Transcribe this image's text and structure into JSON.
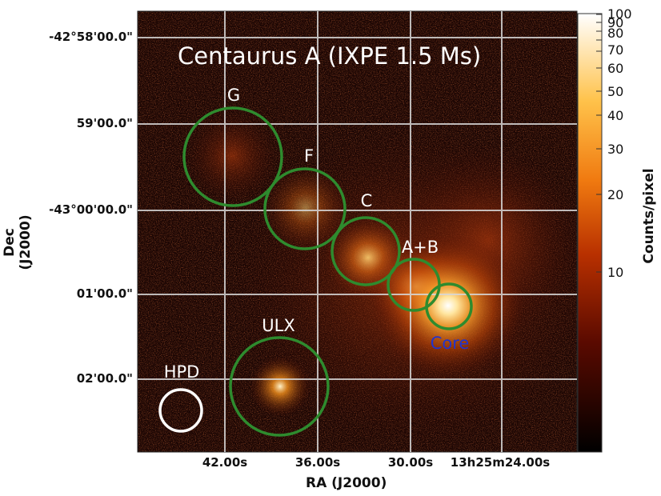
{
  "title": "Centaurus A (IXPE 1.5 Ms)",
  "axes": {
    "xlabel": "RA (J2000)",
    "ylabel": "Dec (J2000)",
    "x_ticks": [
      "42.00s",
      "36.00s",
      "30.00s",
      "13h25m24.00s"
    ],
    "y_ticks": [
      "-42°58'00.0\"",
      "59'00.0\"",
      "-43°00'00.0\"",
      "01'00.0\"",
      "02'00.0\""
    ]
  },
  "colorbar": {
    "label": "Counts/pixel",
    "ticks": [
      "100",
      "90",
      "80",
      "70",
      "60",
      "50",
      "40",
      "30",
      "20",
      "10"
    ],
    "scale": "log",
    "colormap": "hot"
  },
  "regions": [
    {
      "name": "G",
      "color": "#2e8b2e"
    },
    {
      "name": "F",
      "color": "#2e8b2e"
    },
    {
      "name": "C",
      "color": "#2e8b2e"
    },
    {
      "name": "A+B",
      "color": "#2e8b2e"
    },
    {
      "name": "Core",
      "color": "#2e8b2e",
      "label_color": "#2233cc"
    },
    {
      "name": "ULX",
      "color": "#2e8b2e"
    },
    {
      "name": "HPD",
      "color": "#ffffff"
    }
  ],
  "colors": {
    "background": "#1a0503",
    "grid": "#d8d8d8",
    "region_green": "#2e8b2e"
  }
}
